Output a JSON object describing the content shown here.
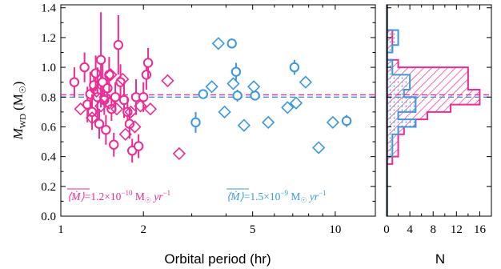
{
  "colors": {
    "low": "#ee2a94",
    "high": "#3b98e0",
    "axis": "#000000"
  },
  "chart_data": [
    {
      "type": "scatter",
      "xlabel": "Orbital period (hr)",
      "ylabel_main": "M",
      "ylabel_sub": "WD",
      "ylabel_unit": "(M",
      "ylabel_unit_close": ")",
      "xscale": "log",
      "xlim": [
        1,
        14
      ],
      "ylim": [
        0,
        1.42
      ],
      "x_ticks": [
        1,
        2,
        5,
        10
      ],
      "x_tick_labels": [
        "1",
        "2",
        "5",
        "10"
      ],
      "y_ticks": [
        0,
        0.2,
        0.4,
        0.6,
        0.8,
        1.0,
        1.2,
        1.4
      ],
      "y_tick_labels": [
        "0.0",
        "0.2",
        "0.4",
        "0.6",
        "0.8",
        "1.0",
        "1.2",
        "1.4"
      ],
      "mean_lines": [
        {
          "group": "low",
          "y": 0.815
        },
        {
          "group": "high",
          "y": 0.8
        }
      ],
      "annotations": [
        {
          "group": "low",
          "prefix": "⟨Ṁ⟩",
          "text": "=1.2×10",
          "exp": "−10",
          "unit": " M",
          "unit_tail": " yr",
          "unit_exp": "−1"
        },
        {
          "group": "high",
          "prefix": "⟨Ṁ⟩",
          "text": "=1.5×10",
          "exp": "−9",
          "unit": " M",
          "unit_tail": " yr",
          "unit_exp": "−1"
        }
      ],
      "series": [
        {
          "group": "low",
          "marker": "circle",
          "points": [
            {
              "x": 1.12,
              "y": 0.9,
              "err": 0.1
            },
            {
              "x": 1.22,
              "y": 1.0,
              "err": 0.1
            },
            {
              "x": 1.25,
              "y": 0.75,
              "err": 0.12
            },
            {
              "x": 1.28,
              "y": 0.82,
              "err": 0.15
            },
            {
              "x": 1.3,
              "y": 0.7,
              "err": 0.12
            },
            {
              "x": 1.32,
              "y": 0.88,
              "err": 0.1
            },
            {
              "x": 1.34,
              "y": 0.96,
              "err": 0.12
            },
            {
              "x": 1.36,
              "y": 0.8,
              "err": 0.2
            },
            {
              "x": 1.38,
              "y": 0.62,
              "err": 0.1
            },
            {
              "x": 1.4,
              "y": 1.05,
              "err": 0.32
            },
            {
              "x": 1.42,
              "y": 0.9,
              "err": 0.12
            },
            {
              "x": 1.44,
              "y": 0.78,
              "err": 0.1
            },
            {
              "x": 1.46,
              "y": 0.58,
              "err": 0.1
            },
            {
              "x": 1.48,
              "y": 0.86,
              "err": 0.1
            },
            {
              "x": 1.5,
              "y": 0.95,
              "err": 0.12
            },
            {
              "x": 1.53,
              "y": 0.72,
              "err": 0.08
            },
            {
              "x": 1.56,
              "y": 0.48,
              "err": 0.08
            },
            {
              "x": 1.58,
              "y": 0.8,
              "err": 0.1
            },
            {
              "x": 1.62,
              "y": 1.15,
              "err": 0.2
            },
            {
              "x": 1.65,
              "y": 0.9,
              "err": 0.12
            },
            {
              "x": 1.7,
              "y": 0.78,
              "err": 0.12
            },
            {
              "x": 1.75,
              "y": 0.7,
              "err": 0.1
            },
            {
              "x": 1.78,
              "y": 0.62,
              "err": 0.1
            },
            {
              "x": 1.82,
              "y": 0.44,
              "err": 0.08
            },
            {
              "x": 1.88,
              "y": 0.8,
              "err": 0.12
            },
            {
              "x": 1.92,
              "y": 0.47,
              "err": 0.08
            },
            {
              "x": 2.0,
              "y": 0.8,
              "err": 0.1
            },
            {
              "x": 2.05,
              "y": 0.95,
              "err": 0.1
            },
            {
              "x": 2.08,
              "y": 1.03,
              "err": 0.1
            }
          ]
        },
        {
          "group": "low",
          "marker": "diamond",
          "points": [
            {
              "x": 1.18,
              "y": 0.72,
              "err": 0
            },
            {
              "x": 1.3,
              "y": 0.66,
              "err": 0
            },
            {
              "x": 1.35,
              "y": 0.84,
              "err": 0
            },
            {
              "x": 1.4,
              "y": 0.74,
              "err": 0
            },
            {
              "x": 1.45,
              "y": 0.8,
              "err": 0
            },
            {
              "x": 1.5,
              "y": 0.76,
              "err": 0
            },
            {
              "x": 1.52,
              "y": 0.95,
              "err": 0
            },
            {
              "x": 1.6,
              "y": 0.72,
              "err": 0
            },
            {
              "x": 1.68,
              "y": 0.92,
              "err": 0
            },
            {
              "x": 1.72,
              "y": 0.55,
              "err": 0
            },
            {
              "x": 1.8,
              "y": 0.7,
              "err": 0
            },
            {
              "x": 1.86,
              "y": 0.6,
              "err": 0
            },
            {
              "x": 1.95,
              "y": 0.74,
              "err": 0
            },
            {
              "x": 2.12,
              "y": 0.72,
              "err": 0
            },
            {
              "x": 2.45,
              "y": 0.91,
              "err": 0
            },
            {
              "x": 2.7,
              "y": 0.42,
              "err": 0
            }
          ]
        },
        {
          "group": "high",
          "marker": "circle",
          "points": [
            {
              "x": 3.1,
              "y": 0.63,
              "err": 0.07
            },
            {
              "x": 3.3,
              "y": 0.82,
              "err": 0.03
            },
            {
              "x": 4.2,
              "y": 1.16,
              "err": 0
            },
            {
              "x": 4.35,
              "y": 0.97,
              "err": 0.06
            },
            {
              "x": 4.4,
              "y": 0.81,
              "err": 0.04
            },
            {
              "x": 5.1,
              "y": 0.81,
              "err": 0.03
            },
            {
              "x": 7.1,
              "y": 1.0,
              "err": 0.05
            },
            {
              "x": 11.0,
              "y": 0.64,
              "err": 0.04
            }
          ]
        },
        {
          "group": "high",
          "marker": "diamond",
          "points": [
            {
              "x": 3.55,
              "y": 0.87,
              "err": 0
            },
            {
              "x": 3.75,
              "y": 1.16,
              "err": 0
            },
            {
              "x": 3.95,
              "y": 0.7,
              "err": 0
            },
            {
              "x": 4.25,
              "y": 0.89,
              "err": 0
            },
            {
              "x": 4.65,
              "y": 0.61,
              "err": 0
            },
            {
              "x": 5.05,
              "y": 0.87,
              "err": 0
            },
            {
              "x": 5.7,
              "y": 0.63,
              "err": 0
            },
            {
              "x": 6.7,
              "y": 0.73,
              "err": 0
            },
            {
              "x": 7.2,
              "y": 0.76,
              "err": 0
            },
            {
              "x": 7.8,
              "y": 0.9,
              "err": 0
            },
            {
              "x": 8.7,
              "y": 0.46,
              "err": 0
            },
            {
              "x": 9.8,
              "y": 0.63,
              "err": 0
            }
          ]
        }
      ]
    },
    {
      "type": "bar",
      "orientation": "horizontal",
      "xlabel": "N",
      "xlim": [
        0,
        18
      ],
      "x_ticks": [
        0,
        4,
        8,
        12,
        16
      ],
      "x_tick_labels": [
        "0",
        "4",
        "8",
        "12",
        "16"
      ],
      "ylim": [
        0,
        1.42
      ],
      "bin_width": 0.05,
      "series": [
        {
          "group": "low",
          "bins": [
            {
              "y0": 0.35,
              "n": 1
            },
            {
              "y0": 0.4,
              "n": 2
            },
            {
              "y0": 0.45,
              "n": 2
            },
            {
              "y0": 0.5,
              "n": 2
            },
            {
              "y0": 0.55,
              "n": 3
            },
            {
              "y0": 0.6,
              "n": 5
            },
            {
              "y0": 0.65,
              "n": 7
            },
            {
              "y0": 0.7,
              "n": 11
            },
            {
              "y0": 0.75,
              "n": 16
            },
            {
              "y0": 0.8,
              "n": 16
            },
            {
              "y0": 0.85,
              "n": 14
            },
            {
              "y0": 0.9,
              "n": 14
            },
            {
              "y0": 0.95,
              "n": 14
            },
            {
              "y0": 1.0,
              "n": 2
            },
            {
              "y0": 1.05,
              "n": 0
            },
            {
              "y0": 1.1,
              "n": 1
            },
            {
              "y0": 1.15,
              "n": 1
            },
            {
              "y0": 1.2,
              "n": 1
            }
          ]
        },
        {
          "group": "high",
          "bins": [
            {
              "y0": 0.4,
              "n": 1
            },
            {
              "y0": 0.45,
              "n": 1
            },
            {
              "y0": 0.5,
              "n": 1
            },
            {
              "y0": 0.55,
              "n": 2
            },
            {
              "y0": 0.6,
              "n": 5
            },
            {
              "y0": 0.65,
              "n": 2
            },
            {
              "y0": 0.7,
              "n": 5
            },
            {
              "y0": 0.75,
              "n": 5
            },
            {
              "y0": 0.8,
              "n": 3
            },
            {
              "y0": 0.85,
              "n": 4
            },
            {
              "y0": 0.9,
              "n": 4
            },
            {
              "y0": 0.95,
              "n": 1
            },
            {
              "y0": 1.0,
              "n": 1
            },
            {
              "y0": 1.05,
              "n": 0
            },
            {
              "y0": 1.1,
              "n": 1
            },
            {
              "y0": 1.15,
              "n": 2
            },
            {
              "y0": 1.2,
              "n": 2
            }
          ]
        }
      ]
    }
  ]
}
